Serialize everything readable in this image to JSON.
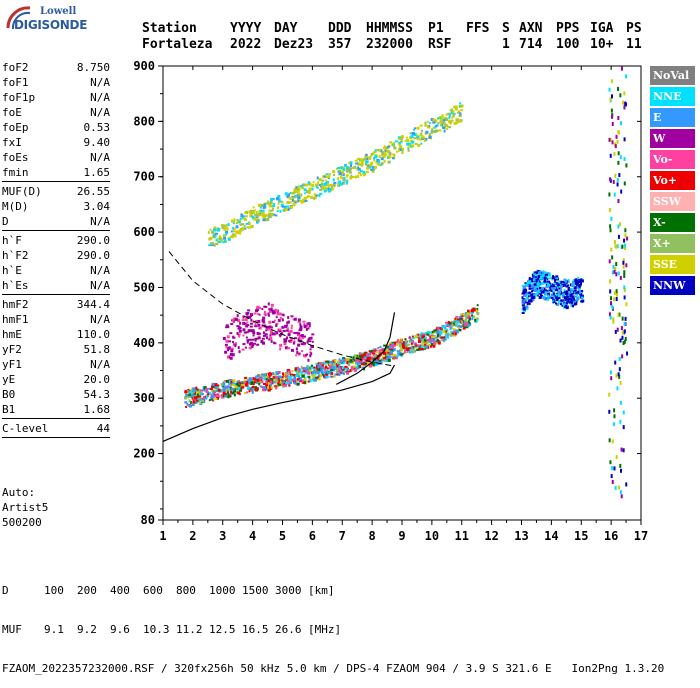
{
  "logo": {
    "line1": "Lowell",
    "line2": "DIGISONDE"
  },
  "header": {
    "labels": [
      "Station",
      "YYYY",
      "DAY",
      "DDD",
      "HHMMSS",
      "P1",
      "FFS",
      "S",
      "AXN",
      "PPS",
      "IGA",
      "PS"
    ],
    "values": [
      "Fortaleza",
      "2022",
      "Dez23",
      "357",
      "232000",
      "RSF",
      "1",
      "714",
      "100",
      "10+",
      "11"
    ]
  },
  "params": {
    "group1": [
      {
        "label": "foF2",
        "value": "8.750"
      },
      {
        "label": "foF1",
        "value": "N/A"
      },
      {
        "label": "foF1p",
        "value": "N/A"
      },
      {
        "label": "foE",
        "value": "N/A"
      },
      {
        "label": "foEp",
        "value": "0.53"
      },
      {
        "label": "fxI",
        "value": "9.40"
      },
      {
        "label": "foEs",
        "value": "N/A"
      },
      {
        "label": "fmin",
        "value": "1.65"
      }
    ],
    "group2": [
      {
        "label": "MUF(D)",
        "value": "26.55"
      },
      {
        "label": "M(D)",
        "value": "3.04"
      },
      {
        "label": "D",
        "value": "N/A"
      }
    ],
    "group3": [
      {
        "label": "h`F",
        "value": "290.0"
      },
      {
        "label": "h`F2",
        "value": "290.0"
      },
      {
        "label": "h`E",
        "value": "N/A"
      },
      {
        "label": "h`Es",
        "value": "N/A"
      }
    ],
    "group4": [
      {
        "label": "hmF2",
        "value": "344.4"
      },
      {
        "label": "hmF1",
        "value": "N/A"
      },
      {
        "label": "hmE",
        "value": "110.0"
      },
      {
        "label": "yF2",
        "value": "51.8"
      },
      {
        "label": "yF1",
        "value": "N/A"
      },
      {
        "label": "yE",
        "value": "20.0"
      },
      {
        "label": "B0",
        "value": "54.3"
      },
      {
        "label": "B1",
        "value": "1.68"
      }
    ],
    "group5": [
      {
        "label": "C-level",
        "value": "44"
      }
    ]
  },
  "auto": {
    "line1": "Auto:",
    "line2": "Artist5",
    "line3": "500200"
  },
  "legend": [
    {
      "label": "NoVal",
      "color": "#808080"
    },
    {
      "label": "NNE",
      "color": "#00e0ff"
    },
    {
      "label": "E",
      "color": "#3399ff"
    },
    {
      "label": "W",
      "color": "#a000a0"
    },
    {
      "label": "Vo-",
      "color": "#ff40a0"
    },
    {
      "label": "Vo+",
      "color": "#ee0000"
    },
    {
      "label": "SSW",
      "color": "#ffb0b0"
    },
    {
      "label": "X-",
      "color": "#007000"
    },
    {
      "label": "X+",
      "color": "#90c060"
    },
    {
      "label": "SSE",
      "color": "#d0d000"
    },
    {
      "label": "NNW",
      "color": "#0000c0"
    }
  ],
  "bottom": {
    "d_label": "D",
    "d_values": [
      "100",
      "200",
      "400",
      "600",
      "800",
      "1000",
      "1500",
      "3000",
      "[km]"
    ],
    "muf_label": "MUF",
    "muf_values": [
      "9.1",
      "9.2",
      "9.6",
      "10.3",
      "11.2",
      "12.5",
      "16.5",
      "26.6",
      "[MHz]"
    ],
    "file_line": "FZAOM_2022357232000.RSF / 320fx256h 50 kHz 5.0 km / DPS-4 FZAOM 904 / 3.9 S 321.6 E   Ion2Png 1.3.20"
  },
  "chart_data": {
    "type": "scatter",
    "x_ticks": [
      "1",
      "2",
      "3",
      "4",
      "5",
      "6",
      "7",
      "8",
      "9",
      "10",
      "11",
      "12",
      "13",
      "14",
      "15",
      "16",
      "17"
    ],
    "y_ticks": [
      "80",
      "200",
      "300",
      "400",
      "500",
      "600",
      "700",
      "800",
      "900"
    ],
    "xlim": [
      1,
      17
    ],
    "ylim": [
      80,
      900
    ],
    "grid": false,
    "legend_position": "right",
    "traces": [
      {
        "name": "O-mode F2 trace",
        "x": [
          1.7,
          2.0,
          3.0,
          4.0,
          5.0,
          6.0,
          7.0,
          8.0,
          8.5,
          9.0,
          10.0,
          10.5,
          11.0,
          11.5
        ],
        "y": [
          300,
          305,
          318,
          327,
          337,
          348,
          360,
          375,
          385,
          395,
          410,
          425,
          440,
          455
        ]
      },
      {
        "name": "multiple-hop trace",
        "x": [
          2.5,
          3.0,
          4.0,
          5.0,
          6.0,
          7.0,
          8.0,
          9.0,
          10.0,
          11.0
        ],
        "y": [
          590,
          600,
          630,
          655,
          680,
          705,
          730,
          760,
          790,
          820
        ]
      },
      {
        "name": "spread cluster",
        "x": [
          13.0,
          13.5,
          14.0,
          14.5,
          15.0
        ],
        "y": [
          480,
          510,
          500,
          490,
          500
        ]
      },
      {
        "name": "sporadic cluster",
        "x": [
          3.0,
          3.5,
          4.0,
          4.5,
          5.0,
          5.5,
          6.0
        ],
        "y": [
          400,
          420,
          430,
          440,
          420,
          410,
          400
        ]
      }
    ],
    "profile_solid": {
      "x": [
        1.0,
        2.0,
        3.0,
        4.0,
        5.0,
        6.0,
        7.0,
        8.0,
        8.6,
        8.75
      ],
      "y": [
        222,
        245,
        265,
        280,
        292,
        303,
        315,
        330,
        345,
        360
      ]
    },
    "profile_solid_upper": {
      "x": [
        6.8,
        7.5,
        8.0,
        8.4,
        8.6,
        8.75
      ],
      "y": [
        325,
        345,
        365,
        385,
        410,
        455
      ]
    },
    "profile_dashed": {
      "x": [
        1.2,
        2.0,
        3.0,
        4.0,
        5.0,
        6.0,
        7.0,
        8.0,
        8.75
      ],
      "y": [
        565,
        512,
        470,
        440,
        415,
        395,
        378,
        365,
        358
      ]
    }
  }
}
